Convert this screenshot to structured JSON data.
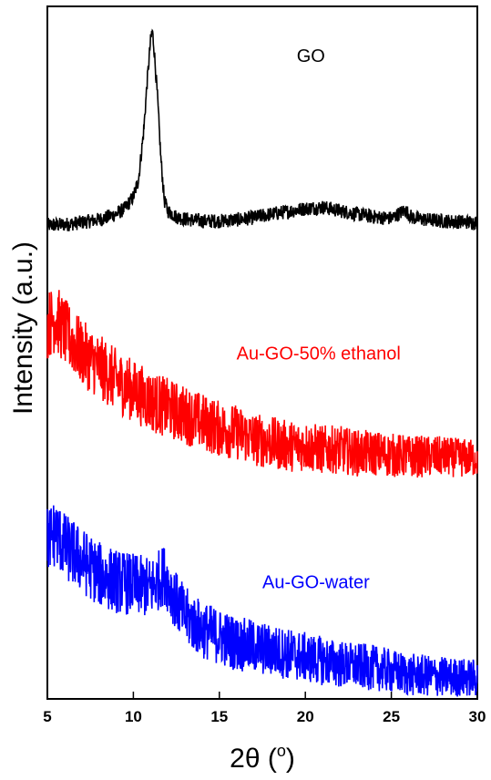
{
  "chart_data": {
    "type": "line",
    "title": "",
    "xlabel": "2θ (°)",
    "xlabel_parts": {
      "main": "2θ (",
      "sup": "o",
      "end": ")"
    },
    "ylabel": "Intensity (a.u.)",
    "xlim": [
      5,
      30
    ],
    "x_ticks": [
      5,
      10,
      15,
      20,
      25,
      30
    ],
    "y_ticks_shown": false,
    "grid": false,
    "legend": "none; series labelled inline",
    "ylim": [
      0,
      100
    ],
    "series": [
      {
        "name": "GO",
        "color": "#000000",
        "noise": 3,
        "points": [
          [
            5.0,
            68.4
          ],
          [
            6,
            68.5
          ],
          [
            7,
            68.8
          ],
          [
            8,
            69.2
          ],
          [
            9,
            70.0
          ],
          [
            9.5,
            70.8
          ],
          [
            10,
            72.5
          ],
          [
            10.3,
            75
          ],
          [
            10.6,
            82
          ],
          [
            10.8,
            89
          ],
          [
            11.0,
            95
          ],
          [
            11.1,
            96.5
          ],
          [
            11.2,
            94
          ],
          [
            11.4,
            87
          ],
          [
            11.6,
            78
          ],
          [
            11.8,
            72
          ],
          [
            12.0,
            70.5
          ],
          [
            12.5,
            69.6
          ],
          [
            13,
            69.3
          ],
          [
            14,
            69.0
          ],
          [
            15,
            69.0
          ],
          [
            16,
            69.2
          ],
          [
            17,
            69.5
          ],
          [
            18,
            70.0
          ],
          [
            19,
            70.4
          ],
          [
            20,
            70.8
          ],
          [
            21,
            71.0
          ],
          [
            22,
            70.5
          ],
          [
            23,
            70.0
          ],
          [
            24,
            69.6
          ],
          [
            25,
            69.4
          ],
          [
            25.8,
            70.6
          ],
          [
            26.2,
            69.5
          ],
          [
            27,
            69.2
          ],
          [
            28,
            69.0
          ],
          [
            29,
            68.9
          ],
          [
            30,
            68.8
          ]
        ]
      },
      {
        "name": "Au-GO-50% ethanol",
        "color": "#ff0000",
        "noise": 5,
        "points": [
          [
            5.0,
            54
          ],
          [
            5.5,
            55
          ],
          [
            6,
            53
          ],
          [
            7,
            50
          ],
          [
            8,
            48
          ],
          [
            9,
            46
          ],
          [
            10,
            44.5
          ],
          [
            11,
            43
          ],
          [
            12,
            42
          ],
          [
            13,
            41
          ],
          [
            14,
            40
          ],
          [
            15,
            39
          ],
          [
            16,
            38.5
          ],
          [
            17,
            37.5
          ],
          [
            18,
            37
          ],
          [
            19,
            36.5
          ],
          [
            20,
            36.5
          ],
          [
            21,
            36
          ],
          [
            22,
            36
          ],
          [
            23,
            35.5
          ],
          [
            24,
            35.5
          ],
          [
            25,
            35.2
          ],
          [
            26,
            35
          ],
          [
            27,
            35
          ],
          [
            28,
            35
          ],
          [
            29,
            34.8
          ],
          [
            30,
            34.8
          ]
        ]
      },
      {
        "name": "Au-GO-water",
        "color": "#0000ff",
        "noise": 5,
        "points": [
          [
            5.0,
            23
          ],
          [
            5.5,
            24
          ],
          [
            6,
            22
          ],
          [
            7,
            20
          ],
          [
            8,
            18
          ],
          [
            9,
            17
          ],
          [
            10,
            16.5
          ],
          [
            11,
            16
          ],
          [
            11.8,
            18
          ],
          [
            12.5,
            14
          ],
          [
            13,
            12
          ],
          [
            14,
            10
          ],
          [
            15,
            9
          ],
          [
            16,
            8
          ],
          [
            17,
            7.5
          ],
          [
            18,
            7
          ],
          [
            19,
            6.5
          ],
          [
            20,
            6
          ],
          [
            22,
            5
          ],
          [
            24,
            4.5
          ],
          [
            26,
            3.5
          ],
          [
            28,
            3.2
          ],
          [
            30,
            3
          ]
        ]
      }
    ],
    "labels": [
      {
        "text": "GO",
        "color": "#000000",
        "x": 19.5,
        "y": 92
      },
      {
        "text": "Au-GO-50% ethanol",
        "color": "#ff0000",
        "x": 16.0,
        "y": 49
      },
      {
        "text": "Au-GO-water",
        "color": "#0000ff",
        "x": 17.5,
        "y": 16
      }
    ]
  }
}
